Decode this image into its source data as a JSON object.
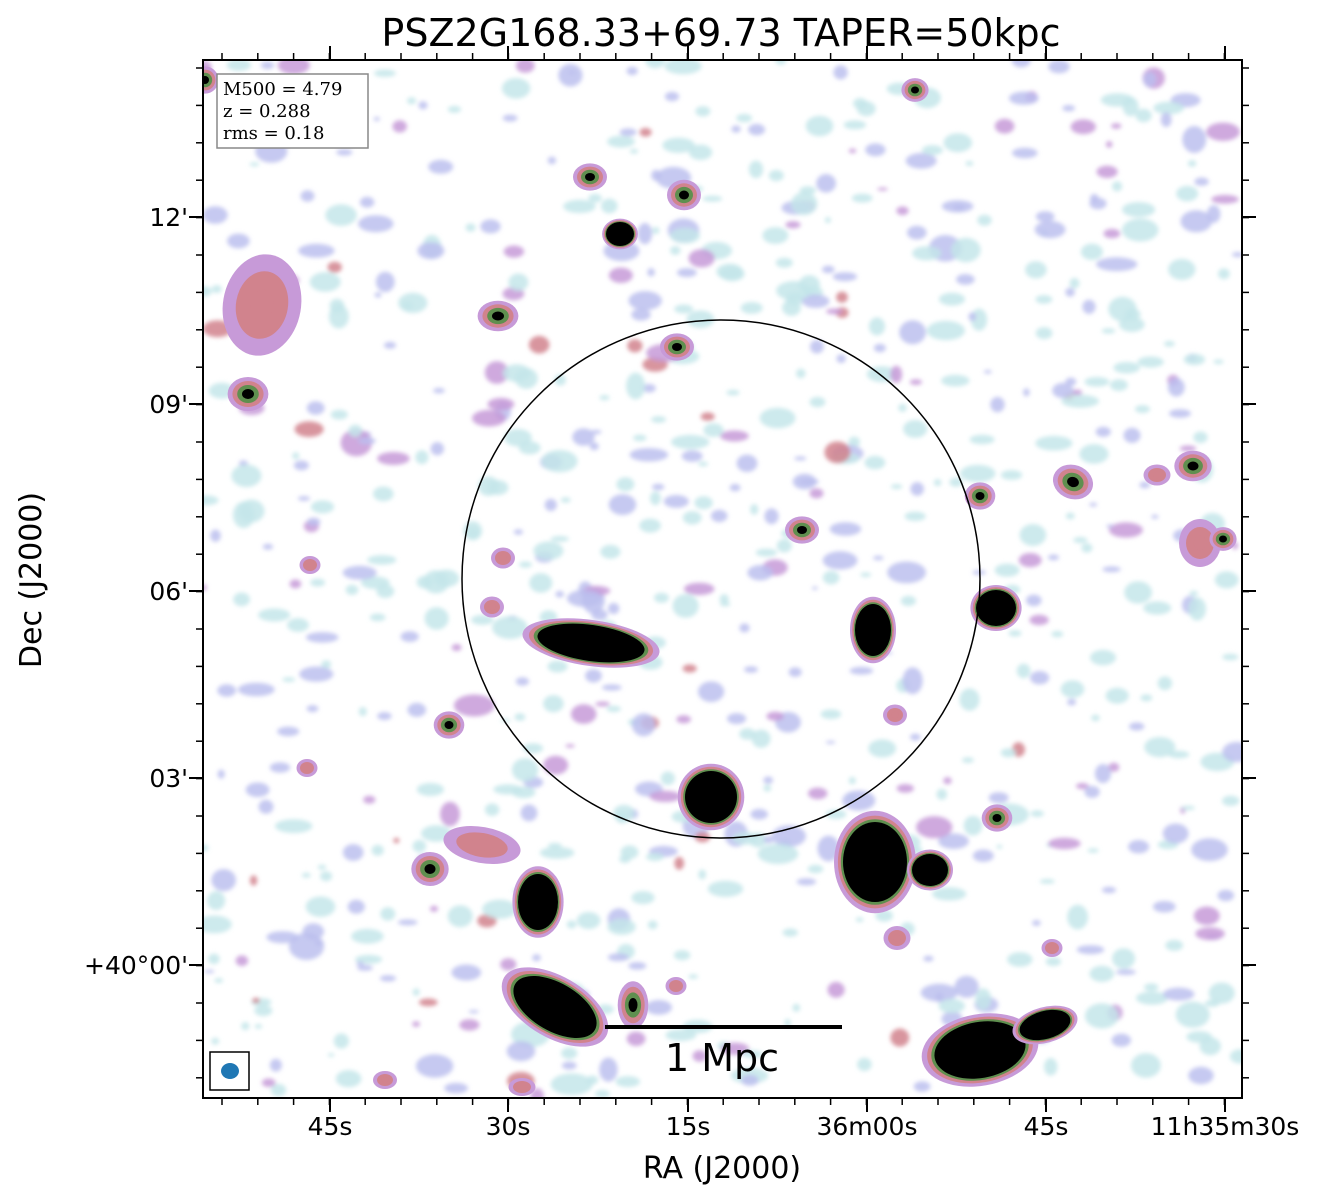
{
  "chart_data": {
    "type": "radio-image",
    "title": "PSZ2G168.33+69.73 TAPER=50kpc",
    "xlabel": "RA (J2000)",
    "ylabel": "Dec (J2000)",
    "x_ticks": [
      "45s",
      "30s",
      "15s",
      "36m00s",
      "45s",
      "11h35m30s"
    ],
    "y_ticks": [
      "12'",
      "09'",
      "06'",
      "03'",
      "+40°00'"
    ],
    "info_box": [
      "M500 = 4.79",
      "z = 0.288",
      "rms = 0.18"
    ],
    "scale_bar_label": "1 Mpc",
    "colormap": [
      "#c4e6ea",
      "#bcc0ee",
      "#c79ad8",
      "#d1838d",
      "#5f8f4f",
      "#000000"
    ],
    "overlay": "circle",
    "beam_color": "#1f77b4"
  }
}
